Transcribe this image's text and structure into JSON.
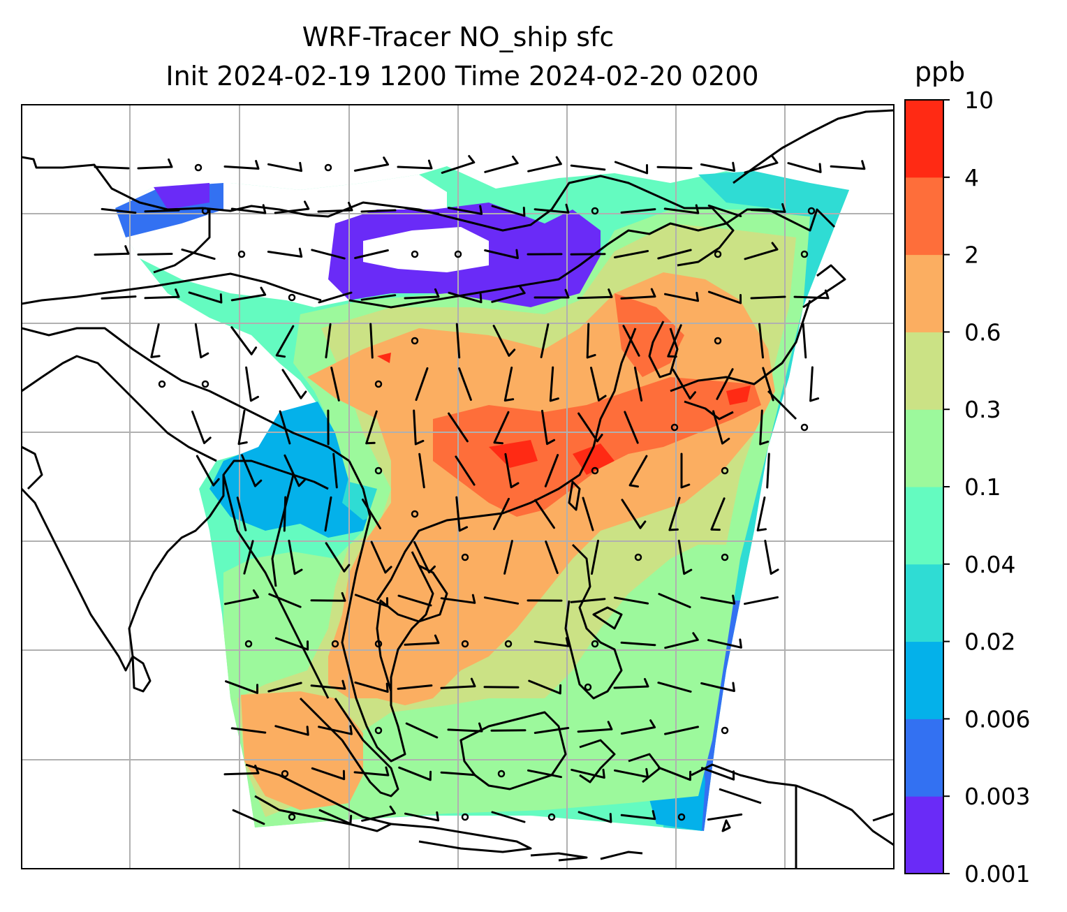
{
  "title": {
    "line1": "WRF-Tracer NO_ship sfc",
    "line2": "Init 2024-02-19 1200 Time 2024-02-20 0200"
  },
  "colorbar": {
    "unit": "ppb",
    "levels": [
      "0.001",
      "0.003",
      "0.006",
      "0.02",
      "0.04",
      "0.1",
      "0.3",
      "0.6",
      "2",
      "4",
      "10"
    ],
    "colors": [
      "#6a2bf7",
      "#3371f2",
      "#04b1ea",
      "#2fdcd4",
      "#64fbc0",
      "#9cf99c",
      "#cbe285",
      "#fbae61",
      "#fe6e3a",
      "#ff2a14"
    ]
  },
  "map": {
    "projection": "Mercator",
    "gridlines": true,
    "gridline_color": "#b0b0b0",
    "coastline_color": "#000000",
    "wind_barbs": true
  }
}
